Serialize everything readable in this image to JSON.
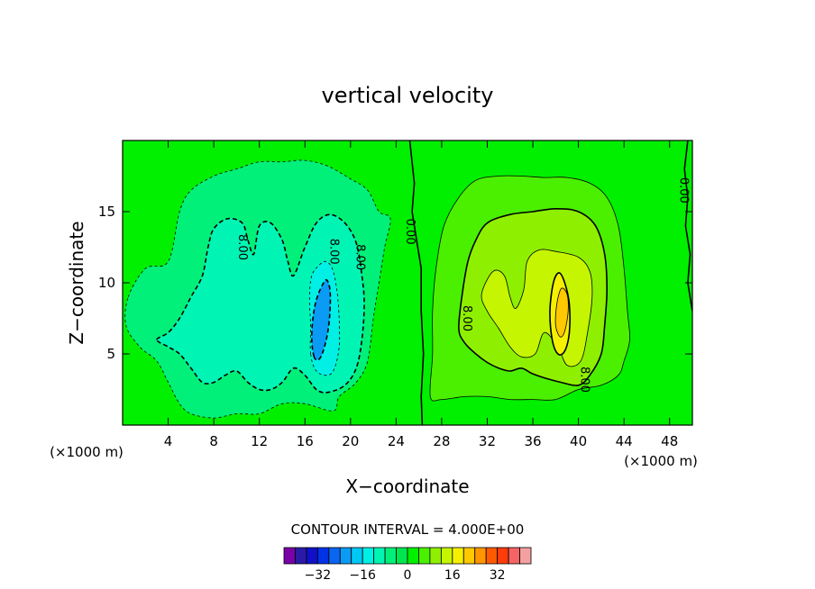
{
  "chart_data": {
    "type": "heatmap",
    "title": "vertical velocity",
    "xlabel": "X−coordinate",
    "ylabel": "Z−coordinate",
    "x_unit_left": "(×1000 m)",
    "x_unit_right": "(×1000 m)",
    "xlim": [
      0,
      50
    ],
    "ylim": [
      0,
      20
    ],
    "x_ticks": [
      4,
      8,
      12,
      16,
      20,
      24,
      28,
      32,
      36,
      40,
      44,
      48
    ],
    "y_ticks": [
      5,
      10,
      15
    ],
    "contour_interval_label": "CONTOUR INTERVAL = 4.000E+00",
    "contour_interval": 4,
    "contour_labels": [
      {
        "text": "8.00",
        "x": 10.5,
        "y": 12.5
      },
      {
        "text": "8.00",
        "x": 18.5,
        "y": 12.2
      },
      {
        "text": "8.00",
        "x": 20.8,
        "y": 11.8
      },
      {
        "text": "0.00",
        "x": 25.2,
        "y": 13.6
      },
      {
        "text": "8.00",
        "x": 30.2,
        "y": 7.5
      },
      {
        "text": "8.00",
        "x": 40.5,
        "y": 3.2
      },
      {
        "text": "0.00",
        "x": 49.2,
        "y": 16.5
      }
    ],
    "colorbar": {
      "levels": 22,
      "tick_labels": [
        "−32",
        "−16",
        "0",
        "16",
        "32"
      ],
      "tick_values": [
        -32,
        -16,
        0,
        16,
        32
      ],
      "colors": [
        "#7a00a8",
        "#2a1aa6",
        "#1010c8",
        "#0033e6",
        "#0a66f0",
        "#0a9bf5",
        "#00c8f5",
        "#00f0e6",
        "#00f5b4",
        "#00f07a",
        "#00e650",
        "#00f000",
        "#4bf000",
        "#8ef000",
        "#c5f500",
        "#f5f000",
        "#ffc800",
        "#ff9600",
        "#ff5a00",
        "#ff3c0a",
        "#f56464",
        "#f5a0a0"
      ]
    },
    "regions": [
      {
        "level": -4,
        "color": "#00f07a",
        "pts": [
          [
            0.5,
            9
          ],
          [
            2,
            11
          ],
          [
            4,
            11.5
          ],
          [
            5,
            15
          ],
          [
            6,
            16.5
          ],
          [
            8,
            17.5
          ],
          [
            10,
            18
          ],
          [
            12,
            18.5
          ],
          [
            14,
            18.5
          ],
          [
            16,
            18.6
          ],
          [
            18,
            18.2
          ],
          [
            20,
            17.3
          ],
          [
            21.5,
            16.5
          ],
          [
            22.5,
            15
          ],
          [
            23.5,
            14.5
          ],
          [
            23,
            12.5
          ],
          [
            22.5,
            10
          ],
          [
            22,
            7.5
          ],
          [
            21.5,
            4.5
          ],
          [
            20.5,
            3
          ],
          [
            19,
            2
          ],
          [
            18.5,
            1
          ],
          [
            16,
            1.5
          ],
          [
            14,
            1.5
          ],
          [
            12,
            0.8
          ],
          [
            10,
            0.8
          ],
          [
            8,
            0.5
          ],
          [
            6,
            0.8
          ],
          [
            5,
            1.5
          ],
          [
            4,
            3
          ],
          [
            3,
            4.5
          ],
          [
            1.5,
            5.5
          ],
          [
            0.3,
            7
          ]
        ]
      },
      {
        "level": -8,
        "color": "#00f5b4",
        "pts": [
          [
            3,
            6
          ],
          [
            4,
            6.5
          ],
          [
            5,
            7.5
          ],
          [
            6,
            9
          ],
          [
            7,
            10.5
          ],
          [
            7.5,
            12.5
          ],
          [
            8,
            13.8
          ],
          [
            9.2,
            14.5
          ],
          [
            10.5,
            14.2
          ],
          [
            11,
            13
          ],
          [
            11.5,
            12
          ],
          [
            12,
            14
          ],
          [
            13,
            14.2
          ],
          [
            14,
            13
          ],
          [
            14.5,
            11.5
          ],
          [
            15,
            10.5
          ],
          [
            16,
            12.5
          ],
          [
            17,
            14.2
          ],
          [
            18.2,
            14.8
          ],
          [
            19.5,
            14.2
          ],
          [
            20.5,
            12.8
          ],
          [
            21,
            10.5
          ],
          [
            21.2,
            8.5
          ],
          [
            21,
            6
          ],
          [
            20.5,
            4
          ],
          [
            19.5,
            2.8
          ],
          [
            18,
            2.3
          ],
          [
            17,
            2.5
          ],
          [
            16,
            3.5
          ],
          [
            15,
            4
          ],
          [
            14,
            3
          ],
          [
            13,
            2.5
          ],
          [
            12,
            2.5
          ],
          [
            11,
            3
          ],
          [
            10,
            3.8
          ],
          [
            9,
            3.5
          ],
          [
            8,
            3
          ],
          [
            7,
            3
          ],
          [
            6,
            4
          ],
          [
            5,
            5
          ],
          [
            4,
            5.5
          ]
        ]
      },
      {
        "level": -12,
        "color": "#00f0e6",
        "pts": [
          [
            16.5,
            5
          ],
          [
            16.5,
            7
          ],
          [
            16.4,
            9
          ],
          [
            16.6,
            10.5
          ],
          [
            17.2,
            11.2
          ],
          [
            17.8,
            11.5
          ],
          [
            18.4,
            11
          ],
          [
            18.8,
            9.5
          ],
          [
            19,
            7.5
          ],
          [
            19,
            5.5
          ],
          [
            18.6,
            4
          ],
          [
            18,
            3.5
          ],
          [
            17,
            3.8
          ]
        ]
      },
      {
        "level": -16,
        "color": "#0a9bf5",
        "pts": [
          [
            16.8,
            4.8
          ],
          [
            16.6,
            6
          ],
          [
            16.7,
            7.5
          ],
          [
            17,
            8.8
          ],
          [
            17.5,
            9.8
          ],
          [
            17.9,
            10.2
          ],
          [
            18.2,
            9.5
          ],
          [
            18.2,
            8
          ],
          [
            18,
            6.5
          ],
          [
            17.6,
            5.2
          ],
          [
            17.2,
            4.6
          ]
        ]
      },
      {
        "level": 4,
        "color": "#4bf000",
        "pts": [
          [
            27,
            2
          ],
          [
            27.2,
            5
          ],
          [
            27.2,
            8
          ],
          [
            27.5,
            11
          ],
          [
            28.2,
            14
          ],
          [
            29.5,
            16
          ],
          [
            31,
            17.2
          ],
          [
            33,
            17.5
          ],
          [
            35,
            17.5
          ],
          [
            37,
            17.4
          ],
          [
            39,
            17.4
          ],
          [
            41,
            17
          ],
          [
            42.5,
            16
          ],
          [
            43.5,
            14
          ],
          [
            44,
            11
          ],
          [
            44.3,
            8
          ],
          [
            44.5,
            6
          ],
          [
            44,
            4.5
          ],
          [
            43.5,
            3.5
          ],
          [
            42,
            2.8
          ],
          [
            40,
            2.5
          ],
          [
            38,
            1.8
          ],
          [
            36,
            1.8
          ],
          [
            34,
            1.8
          ],
          [
            32,
            2
          ],
          [
            30,
            2
          ],
          [
            28,
            1.8
          ]
        ]
      },
      {
        "level": 8,
        "color": "#8ef000",
        "pts": [
          [
            29.5,
            6.8
          ],
          [
            29.8,
            9.2
          ],
          [
            30.3,
            11.5
          ],
          [
            31,
            13
          ],
          [
            32,
            14.2
          ],
          [
            34,
            14.8
          ],
          [
            36,
            15
          ],
          [
            38,
            15.2
          ],
          [
            40,
            15
          ],
          [
            41.5,
            14
          ],
          [
            42.3,
            12
          ],
          [
            42.5,
            9.5
          ],
          [
            42.3,
            7
          ],
          [
            42,
            5
          ],
          [
            41,
            3.5
          ],
          [
            40,
            2.8
          ],
          [
            38.5,
            3
          ],
          [
            37.5,
            3.2
          ],
          [
            36,
            3.6
          ],
          [
            35,
            4
          ],
          [
            34,
            3.8
          ],
          [
            33,
            4
          ],
          [
            32,
            4.4
          ],
          [
            31,
            5
          ],
          [
            30,
            5.8
          ]
        ]
      },
      {
        "level": 12,
        "color": "#c5f500",
        "pts": [
          [
            31.5,
            9.2
          ],
          [
            32.5,
            10.8
          ],
          [
            33.5,
            10.5
          ],
          [
            34,
            9
          ],
          [
            34.5,
            8.2
          ],
          [
            35.2,
            9.5
          ],
          [
            35.5,
            11.5
          ],
          [
            36.5,
            12.3
          ],
          [
            38,
            12.2
          ],
          [
            40,
            11.8
          ],
          [
            41,
            10.8
          ],
          [
            41.2,
            9
          ],
          [
            40.8,
            6.5
          ],
          [
            40.2,
            4.5
          ],
          [
            39,
            4.2
          ],
          [
            38.2,
            5.5
          ],
          [
            37,
            6.5
          ],
          [
            36.2,
            5
          ],
          [
            35,
            4.8
          ],
          [
            34,
            5.5
          ],
          [
            33,
            6.8
          ],
          [
            32,
            8
          ]
        ]
      },
      {
        "level": 16,
        "color": "#f5f000",
        "pts": [
          [
            37.5,
            8
          ],
          [
            37.8,
            10
          ],
          [
            38.3,
            10.7
          ],
          [
            38.8,
            10
          ],
          [
            39.2,
            8.5
          ],
          [
            39.2,
            6.5
          ],
          [
            38.8,
            5.2
          ],
          [
            38.2,
            5
          ],
          [
            37.7,
            6
          ]
        ]
      },
      {
        "level": 20,
        "color": "#ffc800",
        "pts": [
          [
            38,
            7
          ],
          [
            38.1,
            8.5
          ],
          [
            38.5,
            9.6
          ],
          [
            39,
            9.2
          ],
          [
            39.1,
            8
          ],
          [
            38.8,
            6.6
          ],
          [
            38.4,
            6.2
          ]
        ]
      }
    ]
  }
}
